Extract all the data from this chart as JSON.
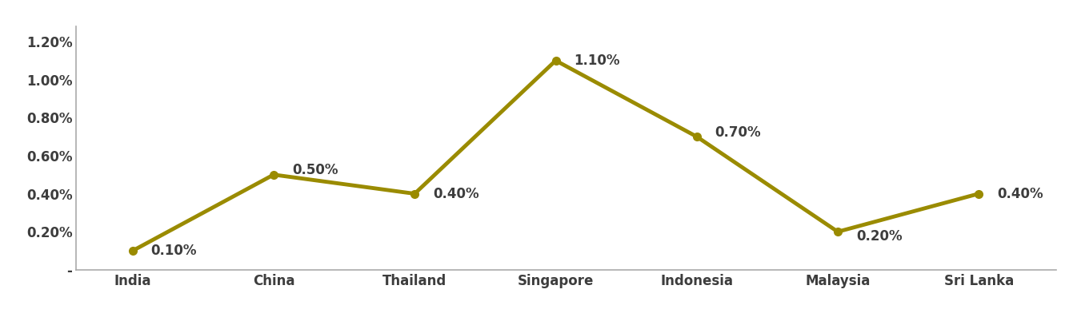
{
  "categories": [
    "India",
    "China",
    "Thailand",
    "Singapore",
    "Indonesia",
    "Malaysia",
    "Sri Lanka"
  ],
  "values": [
    0.1,
    0.5,
    0.4,
    1.1,
    0.7,
    0.2,
    0.4
  ],
  "labels": [
    "0.10%",
    "0.50%",
    "0.40%",
    "1.10%",
    "0.70%",
    "0.20%",
    "0.40%"
  ],
  "line_color": "#9A8B00",
  "marker_color": "#9A8B00",
  "marker_style": "o",
  "marker_size": 7,
  "line_width": 3.5,
  "ylim": [
    0,
    1.28
  ],
  "yticks": [
    0.0,
    0.2,
    0.4,
    0.6,
    0.8,
    1.0,
    1.2
  ],
  "ytick_labels": [
    "-",
    "0.20%",
    "0.40%",
    "0.60%",
    "0.80%",
    "1.00%",
    "1.20%"
  ],
  "background_color": "#ffffff",
  "label_fontsize": 12,
  "tick_fontsize": 12,
  "label_color": "#3d3d3d",
  "spine_color": "#aaaaaa"
}
